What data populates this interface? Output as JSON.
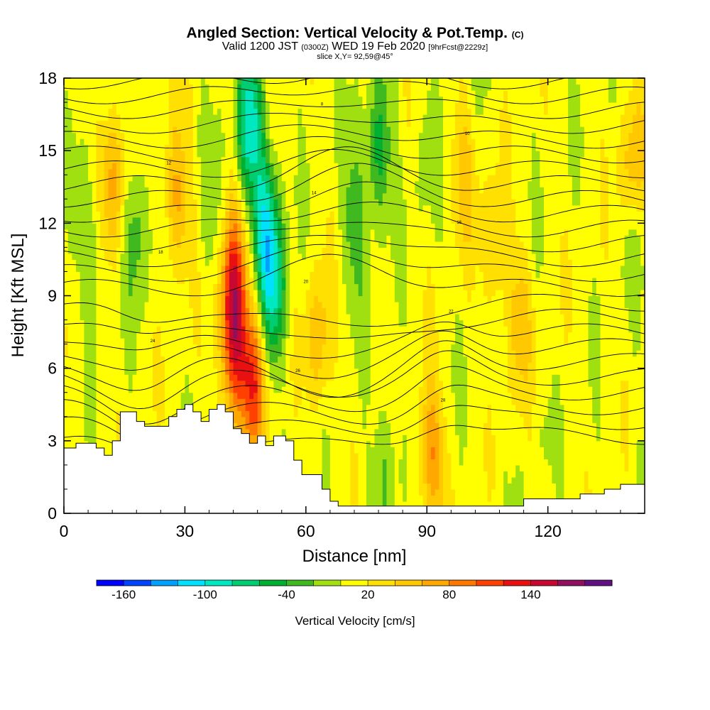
{
  "header": {
    "title": "Angled Section: Vertical Velocity & Pot.Temp.",
    "title_suffix": "(C)",
    "valid_prefix": "Valid 1200 JST",
    "valid_z": "(0300Z)",
    "valid_date": "WED 19 Feb 2020",
    "forecast": "[9hrFcst@2229z]",
    "slice": "slice X,Y= 92,59@45°"
  },
  "chart_data": {
    "type": "heatmap",
    "xlabel": "Distance [nm]",
    "ylabel": "Height [Kft MSL]",
    "xlim": [
      0,
      144
    ],
    "ylim": [
      0,
      18
    ],
    "x_ticks": [
      "0",
      "30",
      "60",
      "90",
      "120"
    ],
    "x_tick_values": [
      0,
      30,
      60,
      90,
      120
    ],
    "y_ticks": [
      "0",
      "3",
      "6",
      "9",
      "12",
      "15",
      "18"
    ],
    "y_tick_values": [
      0,
      3,
      6,
      9,
      12,
      15,
      18
    ],
    "colorbar": {
      "label": "Vertical Velocity [cm/s]",
      "tick_labels": [
        "-160",
        "-100",
        "-40",
        "20",
        "80",
        "140"
      ],
      "tick_values": [
        -160,
        -100,
        -40,
        20,
        80,
        140
      ],
      "min": -180,
      "step": 20,
      "colors": [
        "#0000ff",
        "#0044ff",
        "#00a0ff",
        "#00e0ff",
        "#00e8c0",
        "#00cc70",
        "#00b030",
        "#40b820",
        "#a0e010",
        "#ffff00",
        "#ffe000",
        "#ffc800",
        "#ffa800",
        "#ff7800",
        "#ff4000",
        "#e81010",
        "#c80830",
        "#901060",
        "#601080"
      ]
    },
    "terrain": [
      [
        0,
        2.7
      ],
      [
        3,
        2.9
      ],
      [
        6,
        2.9
      ],
      [
        8,
        2.7
      ],
      [
        10,
        2.4
      ],
      [
        12,
        3.0
      ],
      [
        14,
        4.2
      ],
      [
        16,
        4.2
      ],
      [
        18,
        3.8
      ],
      [
        20,
        3.6
      ],
      [
        24,
        3.6
      ],
      [
        26,
        4.0
      ],
      [
        28,
        4.3
      ],
      [
        30,
        4.5
      ],
      [
        32,
        4.2
      ],
      [
        34,
        3.8
      ],
      [
        36,
        4.3
      ],
      [
        38,
        4.5
      ],
      [
        40,
        4.2
      ],
      [
        42,
        3.5
      ],
      [
        44,
        3.3
      ],
      [
        46,
        2.9
      ],
      [
        48,
        3.2
      ],
      [
        50,
        2.8
      ],
      [
        52,
        3.2
      ],
      [
        55,
        3.0
      ],
      [
        57,
        2.2
      ],
      [
        59,
        1.6
      ],
      [
        62,
        1.6
      ],
      [
        64,
        1.0
      ],
      [
        66,
        0.5
      ],
      [
        68,
        0.3
      ],
      [
        100,
        0.3
      ],
      [
        112,
        0.3
      ],
      [
        114,
        0.6
      ],
      [
        120,
        0.6
      ],
      [
        128,
        0.8
      ],
      [
        134,
        1.0
      ],
      [
        138,
        1.2
      ],
      [
        144,
        1.3
      ]
    ],
    "updraft_cores": [
      {
        "x": 42,
        "z": 9.5,
        "w": 110
      },
      {
        "x": 42,
        "z": 6.5,
        "w": 90
      },
      {
        "x": 47,
        "z": 5.5,
        "w": 100
      },
      {
        "x": 12,
        "z": 14,
        "w": 60
      },
      {
        "x": 28,
        "z": 13,
        "w": 60
      },
      {
        "x": 63,
        "z": 7,
        "w": 50
      },
      {
        "x": 91,
        "z": 2.5,
        "w": 70
      },
      {
        "x": 99,
        "z": 14,
        "w": 40
      },
      {
        "x": 107,
        "z": 11,
        "w": 40
      },
      {
        "x": 113,
        "z": 8,
        "w": 40
      },
      {
        "x": 141,
        "z": 14,
        "w": 60
      }
    ],
    "downdraft_cores": [
      {
        "x": 46,
        "z": 16,
        "w": -100
      },
      {
        "x": 50,
        "z": 12,
        "w": -90
      },
      {
        "x": 52,
        "z": 9,
        "w": -80
      },
      {
        "x": 78,
        "z": 15,
        "w": -60
      },
      {
        "x": 72,
        "z": 12,
        "w": -40
      },
      {
        "x": 18,
        "z": 12,
        "w": -40
      },
      {
        "x": 7,
        "z": 11,
        "w": -30
      },
      {
        "x": 37,
        "z": 12,
        "w": -20
      },
      {
        "x": 90,
        "z": 15,
        "w": -20
      },
      {
        "x": 141,
        "z": 12,
        "w": -30
      },
      {
        "x": 80,
        "z": 2,
        "w": -30
      }
    ],
    "isentropes": {
      "min_height": 3.2,
      "max_height": 17.9,
      "count": 25,
      "label_values": [
        "30",
        "28",
        "26",
        "24",
        "22",
        "20",
        "18",
        "16",
        "14",
        "12",
        "10",
        "8"
      ]
    }
  }
}
